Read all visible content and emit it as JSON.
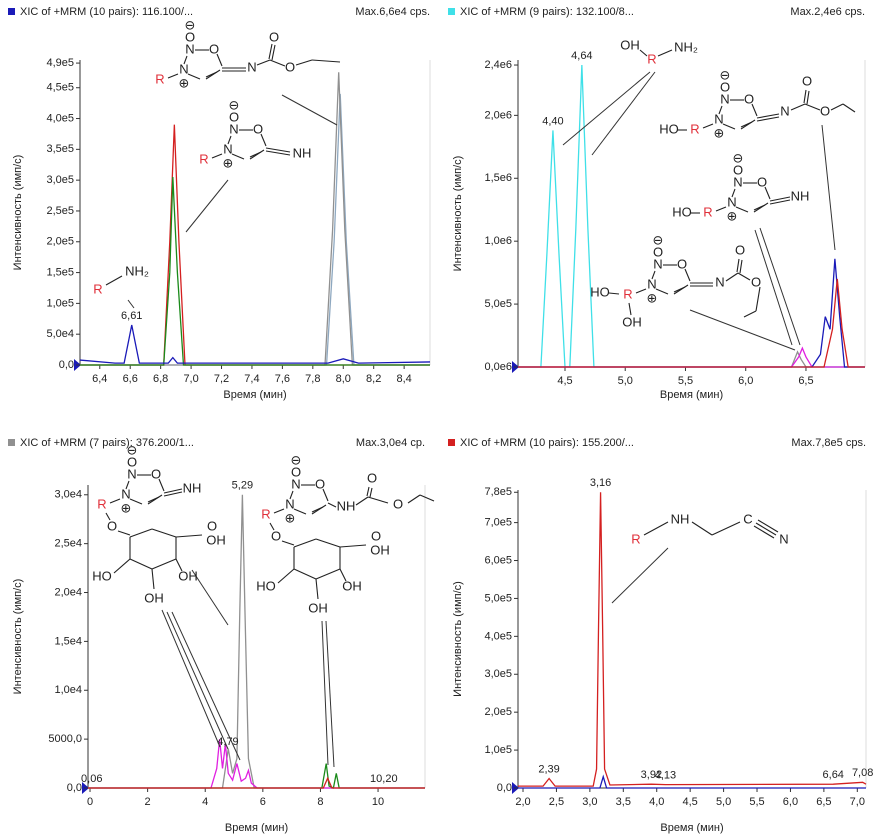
{
  "chart_data": [
    {
      "type": "line",
      "header": "XIC of +MRM (10 pairs): 116.100/...",
      "header_color": "#1a1ab8",
      "max_label": "Max.6,6e4 cps.",
      "ylabel": "Интенсивность (имп/с)",
      "xlabel": "Время (мин)",
      "xlim": [
        6.27,
        8.57
      ],
      "ylim": [
        0,
        495000
      ],
      "xticks": [
        {
          "value": 6.4,
          "label": "6,4"
        },
        {
          "value": 6.6,
          "label": "6,6"
        },
        {
          "value": 6.8,
          "label": "6,8"
        },
        {
          "value": 7.0,
          "label": "7,0"
        },
        {
          "value": 7.2,
          "label": "7,2"
        },
        {
          "value": 7.4,
          "label": "7,4"
        },
        {
          "value": 7.6,
          "label": "7,6"
        },
        {
          "value": 7.8,
          "label": "7,8"
        },
        {
          "value": 8.0,
          "label": "8,0"
        },
        {
          "value": 8.2,
          "label": "8,2"
        },
        {
          "value": 8.4,
          "label": "8,4"
        }
      ],
      "yticks": [
        {
          "value": 0,
          "label": "0,0"
        },
        {
          "value": 50000,
          "label": "5,0e4"
        },
        {
          "value": 100000,
          "label": "1,0e5"
        },
        {
          "value": 150000,
          "label": "1,5e5"
        },
        {
          "value": 200000,
          "label": "2,0e5"
        },
        {
          "value": 250000,
          "label": "2,5e5"
        },
        {
          "value": 300000,
          "label": "3,0e5"
        },
        {
          "value": 350000,
          "label": "3,5e5"
        },
        {
          "value": 400000,
          "label": "4,0e5"
        },
        {
          "value": 450000,
          "label": "4,5e5"
        },
        {
          "value": 490000,
          "label": "4,9e5"
        }
      ],
      "series": [
        {
          "color": "#8ea8c0",
          "x": [
            6.27,
            7.89,
            7.94,
            7.98,
            8.02,
            8.07,
            8.57
          ],
          "values": [
            0,
            0,
            200000,
            440000,
            200000,
            0,
            0
          ]
        },
        {
          "color": "#909090",
          "x": [
            6.27,
            7.88,
            7.93,
            7.97,
            8.01,
            8.06,
            8.57
          ],
          "values": [
            0,
            0,
            220000,
            475000,
            220000,
            0,
            0
          ]
        },
        {
          "color": "#d42020",
          "x": [
            6.27,
            6.82,
            6.86,
            6.89,
            6.92,
            6.96,
            8.57
          ],
          "values": [
            0,
            0,
            200000,
            390000,
            200000,
            0,
            0
          ]
        },
        {
          "color": "#1a8a1a",
          "x": [
            6.27,
            6.82,
            6.86,
            6.88,
            6.91,
            6.95,
            8.57
          ],
          "values": [
            0,
            0,
            150000,
            305000,
            150000,
            0,
            0
          ]
        },
        {
          "color": "#1a1ab8",
          "x": [
            6.27,
            6.5,
            6.56,
            6.59,
            6.61,
            6.63,
            6.66,
            6.85,
            6.88,
            6.91,
            7.9,
            8.0,
            8.1,
            8.57
          ],
          "values": [
            8000,
            3000,
            3000,
            40000,
            65000,
            40000,
            3000,
            3000,
            12000,
            3000,
            3000,
            10000,
            3000,
            5000
          ]
        }
      ],
      "peak_labels": [
        {
          "label": "6,61",
          "x": 6.61
        }
      ],
      "structures": [
        {
          "atoms": [
            "⊖",
            "O",
            "N",
            "O",
            "N",
            "⊕",
            "R",
            "N",
            "O",
            "O"
          ]
        },
        {
          "atoms": [
            "⊖",
            "O",
            "N",
            "O",
            "N",
            "⊕",
            "R",
            "NH"
          ]
        },
        {
          "atoms": [
            "R",
            "NH₂"
          ]
        }
      ]
    },
    {
      "type": "line",
      "header": "XIC of +MRM (9 pairs): 132.100/8...",
      "header_color": "#3fe0e8",
      "max_label": "Max.2,4e6 cps.",
      "ylabel": "Интенсивность (имп/с)",
      "xlabel": "Время (мин)",
      "xlim": [
        4.11,
        6.99
      ],
      "ylim": [
        0,
        2440000
      ],
      "xticks": [
        {
          "value": 4.5,
          "label": "4,5"
        },
        {
          "value": 5.0,
          "label": "5,0"
        },
        {
          "value": 5.5,
          "label": "5,5"
        },
        {
          "value": 6.0,
          "label": "6,0"
        },
        {
          "value": 6.5,
          "label": "6,5"
        }
      ],
      "yticks": [
        {
          "value": 0,
          "label": "0,0e6"
        },
        {
          "value": 500000,
          "label": "5,0e5"
        },
        {
          "value": 1000000,
          "label": "1,0e6"
        },
        {
          "value": 1500000,
          "label": "1,5e6"
        },
        {
          "value": 2000000,
          "label": "2,0e6"
        },
        {
          "value": 2400000,
          "label": "2,4e6"
        }
      ],
      "series": [
        {
          "color": "#3fe0e8",
          "x": [
            4.11,
            4.3,
            4.35,
            4.4,
            4.45,
            4.5,
            4.54,
            4.59,
            4.64,
            4.69,
            4.74,
            6.99
          ],
          "values": [
            0,
            0,
            900000,
            1880000,
            900000,
            0,
            0,
            1100000,
            2400000,
            1100000,
            0,
            0
          ]
        },
        {
          "color": "#909090",
          "x": [
            4.11,
            6.38,
            6.43,
            6.46,
            6.5,
            6.99
          ],
          "values": [
            0,
            0,
            120000,
            60000,
            0,
            0
          ]
        },
        {
          "color": "#e020e0",
          "x": [
            4.11,
            6.38,
            6.44,
            6.47,
            6.5,
            6.55,
            6.99
          ],
          "values": [
            0,
            0,
            80000,
            150000,
            80000,
            0,
            0
          ]
        },
        {
          "color": "#1a1ab8",
          "x": [
            4.11,
            6.55,
            6.62,
            6.66,
            6.7,
            6.74,
            6.78,
            6.82,
            6.99
          ],
          "values": [
            0,
            0,
            100000,
            400000,
            300000,
            860000,
            400000,
            0,
            0
          ]
        },
        {
          "color": "#d42020",
          "x": [
            4.11,
            6.65,
            6.72,
            6.76,
            6.8,
            6.85,
            6.99
          ],
          "values": [
            0,
            0,
            300000,
            700000,
            300000,
            0,
            0
          ]
        }
      ],
      "peak_labels": [
        {
          "label": "4,40",
          "x": 4.4
        },
        {
          "label": "4,64",
          "x": 4.64
        }
      ],
      "structures": [
        {
          "atoms": [
            "OH",
            "R",
            "NH₂"
          ]
        },
        {
          "atoms": [
            "⊖",
            "O",
            "N",
            "O",
            "N",
            "⊕",
            "R",
            "HO",
            "N",
            "O",
            "O"
          ]
        },
        {
          "atoms": [
            "⊖",
            "O",
            "N",
            "O",
            "N",
            "⊕",
            "R",
            "HO",
            "NH"
          ]
        },
        {
          "atoms": [
            "⊖",
            "O",
            "N",
            "O",
            "N",
            "⊕",
            "R",
            "HO",
            "OH",
            "N",
            "O",
            "O"
          ]
        }
      ]
    },
    {
      "type": "line",
      "header": "XIC of +MRM (7 pairs): 376.200/1...",
      "header_color": "#909090",
      "max_label": "Max.3,0e4 cp.",
      "ylabel": "Интенсивность (имп/с)",
      "xlabel": "Время (мин)",
      "xlim": [
        -0.07,
        11.63
      ],
      "ylim": [
        0,
        31000
      ],
      "xticks": [
        0,
        2,
        4,
        6,
        8,
        10
      ],
      "yticks": [
        {
          "value": 0,
          "label": "0,0"
        },
        {
          "value": 5000,
          "label": "5000,0"
        },
        {
          "value": 10000,
          "label": "1,0e4"
        },
        {
          "value": 15000,
          "label": "1,5e4"
        },
        {
          "value": 20000,
          "label": "2,0e4"
        },
        {
          "value": 25000,
          "label": "2,5e4"
        },
        {
          "value": 30000,
          "label": "3,0e4"
        }
      ],
      "series": [
        {
          "color": "#909090",
          "x": [
            -0.07,
            4.6,
            4.8,
            4.95,
            5.1,
            5.2,
            5.29,
            5.38,
            5.5,
            5.7,
            11.63
          ],
          "values": [
            0,
            0,
            4000,
            1500,
            3000,
            18000,
            30000,
            18000,
            3000,
            0,
            0
          ]
        },
        {
          "color": "#e020e0",
          "x": [
            -0.07,
            4.2,
            4.4,
            4.5,
            4.6,
            4.7,
            4.8,
            4.95,
            5.1,
            5.25,
            5.4,
            5.5,
            5.6,
            5.8,
            11.63
          ],
          "values": [
            0,
            0,
            2000,
            5000,
            2000,
            4500,
            1500,
            800,
            2500,
            700,
            1000,
            1800,
            500,
            0,
            0
          ]
        },
        {
          "color": "#1a8a1a",
          "x": [
            -0.07,
            8.05,
            8.2,
            8.3,
            8.45,
            8.55,
            8.65,
            11.63
          ],
          "values": [
            0,
            0,
            2500,
            200,
            0,
            1500,
            0,
            0
          ]
        },
        {
          "color": "#d42020",
          "x": [
            -0.07,
            8.1,
            8.25,
            8.4,
            11.63
          ],
          "values": [
            0,
            0,
            1000,
            0,
            0
          ]
        }
      ],
      "peak_labels": [
        {
          "label": "0,06",
          "x": 0.06
        },
        {
          "label": "4,79",
          "x": 4.79
        },
        {
          "label": "5,29",
          "x": 5.29
        },
        {
          "label": "10,20",
          "x": 10.2
        }
      ],
      "structures": [
        {
          "atoms": [
            "⊖",
            "O",
            "N",
            "O",
            "N",
            "⊕",
            "R",
            "NH",
            "O",
            "O",
            "OH",
            "HO",
            "OH",
            "OH"
          ]
        },
        {
          "atoms": [
            "⊖",
            "O",
            "N",
            "O",
            "N",
            "⊕",
            "R",
            "NH",
            "O",
            "O",
            "O",
            "O",
            "OH",
            "HO",
            "OH",
            "OH"
          ]
        }
      ]
    },
    {
      "type": "line",
      "header": "XIC of +MRM (10 pairs): 155.200/...",
      "header_color": "#d42020",
      "max_label": "Max.7,8e5 cps.",
      "ylabel": "Интенсивность (имп/с)",
      "xlabel": "Время (мин)",
      "xlim": [
        1.925,
        7.13
      ],
      "ylim": [
        0,
        786000
      ],
      "xticks": [
        {
          "value": 2.0,
          "label": "2,0"
        },
        {
          "value": 2.5,
          "label": "2,5"
        },
        {
          "value": 3.0,
          "label": "3,0"
        },
        {
          "value": 3.5,
          "label": "3,5"
        },
        {
          "value": 4.0,
          "label": "4,0"
        },
        {
          "value": 4.5,
          "label": "4,5"
        },
        {
          "value": 5.0,
          "label": "5,0"
        },
        {
          "value": 5.5,
          "label": "5,5"
        },
        {
          "value": 6.0,
          "label": "6,0"
        },
        {
          "value": 6.5,
          "label": "6,5"
        },
        {
          "value": 7.0,
          "label": "7,0"
        }
      ],
      "yticks": [
        {
          "value": 0,
          "label": "0,0"
        },
        {
          "value": 100000,
          "label": "1,0e5"
        },
        {
          "value": 200000,
          "label": "2,0e5"
        },
        {
          "value": 300000,
          "label": "3,0e5"
        },
        {
          "value": 400000,
          "label": "4,0e5"
        },
        {
          "value": 500000,
          "label": "5,0e5"
        },
        {
          "value": 600000,
          "label": "6,0e5"
        },
        {
          "value": 700000,
          "label": "7,0e5"
        },
        {
          "value": 780000,
          "label": "7,8e5"
        }
      ],
      "series": [
        {
          "color": "#d42020",
          "x": [
            1.925,
            2.3,
            2.39,
            2.48,
            3.05,
            3.1,
            3.13,
            3.16,
            3.19,
            3.22,
            3.3,
            3.92,
            4.13,
            6.64,
            7.08,
            7.13
          ],
          "values": [
            5000,
            5000,
            25000,
            5000,
            5000,
            50000,
            430000,
            780000,
            430000,
            50000,
            8000,
            10000,
            9000,
            10000,
            15000,
            10000
          ]
        },
        {
          "color": "#1a1ab8",
          "x": [
            1.925,
            3.15,
            3.2,
            3.25,
            7.13
          ],
          "values": [
            0,
            0,
            30000,
            0,
            0
          ]
        }
      ],
      "peak_labels": [
        {
          "label": "2,39",
          "x": 2.39
        },
        {
          "label": "3,16",
          "x": 3.16
        },
        {
          "label": "3,92",
          "x": 3.92
        },
        {
          "label": "4,13",
          "x": 4.13
        },
        {
          "label": "6,64",
          "x": 6.64
        },
        {
          "label": "7,08",
          "x": 7.08
        }
      ],
      "structures": [
        {
          "atoms": [
            "R",
            "NH",
            "C",
            "N"
          ]
        }
      ]
    }
  ]
}
